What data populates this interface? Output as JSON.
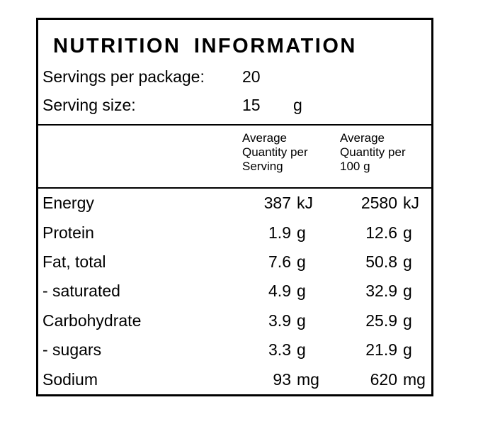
{
  "label": {
    "title": "NUTRITION INFORMATION",
    "servings_per_package": {
      "label": "Servings per package:",
      "value": "20",
      "unit": ""
    },
    "serving_size": {
      "label": "Serving size:",
      "value": "15",
      "unit": "g"
    },
    "columns": {
      "per_serving": "Average\nQuantity per\nServing",
      "per_100g": "Average\nQuantity per\n100 g"
    },
    "rows": [
      {
        "name": "Energy",
        "per_serving": "387",
        "per_serving_unit": "kJ",
        "per_100g": "2580",
        "per_100g_unit": "kJ"
      },
      {
        "name": "Protein",
        "per_serving": "1.9",
        "per_serving_unit": "g",
        "per_100g": "12.6",
        "per_100g_unit": "g"
      },
      {
        "name": "Fat, total",
        "per_serving": "7.6",
        "per_serving_unit": "g",
        "per_100g": "50.8",
        "per_100g_unit": "g"
      },
      {
        "name": "- saturated",
        "per_serving": "4.9",
        "per_serving_unit": "g",
        "per_100g": "32.9",
        "per_100g_unit": "g"
      },
      {
        "name": "Carbohydrate",
        "per_serving": "3.9",
        "per_serving_unit": "g",
        "per_100g": "25.9",
        "per_100g_unit": "g"
      },
      {
        "name": "- sugars",
        "per_serving": "3.3",
        "per_serving_unit": "g",
        "per_100g": "21.9",
        "per_100g_unit": "g"
      },
      {
        "name": "Sodium",
        "per_serving": "93",
        "per_serving_unit": "mg",
        "per_100g": "620",
        "per_100g_unit": "mg"
      }
    ],
    "colors": {
      "border": "#000000",
      "background": "#ffffff",
      "text": "#000000"
    }
  }
}
